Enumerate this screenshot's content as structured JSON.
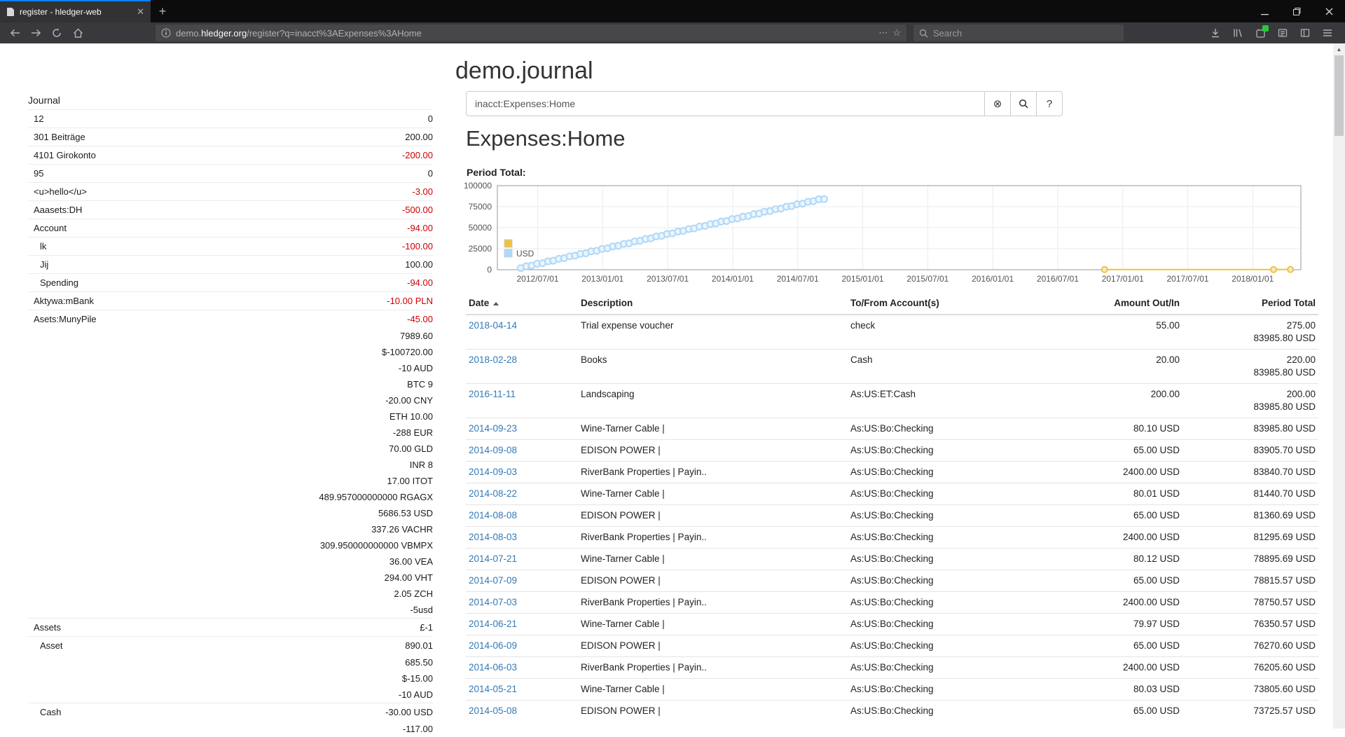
{
  "browser": {
    "tab_title": "register - hledger-web",
    "url": {
      "pre": "demo.",
      "domain": "hledger.org",
      "path": "/register?q=inacct%3AExpenses%3AHome"
    },
    "search_placeholder": "Search"
  },
  "colors": {
    "link": "#337ab7",
    "negative": "#cc0000",
    "tab_accent": "#0a84ff",
    "series_yellow": "#EDC240",
    "series_blue": "#AFD8F8"
  },
  "page": {
    "title": "demo.journal",
    "sidebar": {
      "header": "Journal",
      "rows": [
        {
          "name": "12",
          "indent": 1,
          "amount": "0",
          "red": false
        },
        {
          "name": "301 Beiträge",
          "indent": 1,
          "amount": "200.00",
          "red": false
        },
        {
          "name": "4101 Girokonto",
          "indent": 1,
          "amount": "-200.00",
          "red": true
        },
        {
          "name": "95",
          "indent": 1,
          "amount": "0",
          "red": false
        },
        {
          "name": "<u>hello</u>",
          "indent": 1,
          "amount": "-3.00",
          "red": true
        },
        {
          "name": "Aaasets:DH",
          "indent": 1,
          "amount": "-500.00",
          "red": true
        },
        {
          "name": "Account",
          "indent": 1,
          "amount": "-94.00",
          "red": true
        },
        {
          "name": "lk",
          "indent": 2,
          "amount": "-100.00",
          "red": true
        },
        {
          "name": "Jij",
          "indent": 2,
          "amount": "100.00",
          "red": false
        },
        {
          "name": "Spending",
          "indent": 2,
          "amount": "-94.00",
          "red": true
        },
        {
          "name": "Aktywa:mBank",
          "indent": 1,
          "amount": "-10.00 PLN",
          "red": true
        },
        {
          "name": "Asets:MunyPile",
          "indent": 1,
          "amount": "-45.00",
          "red": true
        },
        {
          "name": "",
          "indent": 0,
          "amount": "7989.60",
          "red": false
        },
        {
          "name": "",
          "indent": 0,
          "amount": "$-100720.00",
          "red": false
        },
        {
          "name": "",
          "indent": 0,
          "amount": "-10 AUD",
          "red": false
        },
        {
          "name": "",
          "indent": 0,
          "amount": "BTC 9",
          "red": false
        },
        {
          "name": "",
          "indent": 0,
          "amount": "-20.00 CNY",
          "red": false
        },
        {
          "name": "",
          "indent": 0,
          "amount": "ETH 10.00",
          "red": false
        },
        {
          "name": "",
          "indent": 0,
          "amount": "-288 EUR",
          "red": false
        },
        {
          "name": "",
          "indent": 0,
          "amount": "70.00 GLD",
          "red": false
        },
        {
          "name": "",
          "indent": 0,
          "amount": "INR 8",
          "red": false
        },
        {
          "name": "",
          "indent": 0,
          "amount": "17.00 ITOT",
          "red": false
        },
        {
          "name": "",
          "indent": 0,
          "amount": "489.957000000000 RGAGX",
          "red": false
        },
        {
          "name": "",
          "indent": 0,
          "amount": "5686.53 USD",
          "red": false
        },
        {
          "name": "",
          "indent": 0,
          "amount": "337.26 VACHR",
          "red": false
        },
        {
          "name": "",
          "indent": 0,
          "amount": "309.950000000000 VBMPX",
          "red": false
        },
        {
          "name": "",
          "indent": 0,
          "amount": "36.00 VEA",
          "red": false
        },
        {
          "name": "",
          "indent": 0,
          "amount": "294.00 VHT",
          "red": false
        },
        {
          "name": "",
          "indent": 0,
          "amount": "2.05 ZCH",
          "red": false
        },
        {
          "name": "",
          "indent": 0,
          "amount": "-5usd",
          "red": false
        },
        {
          "name": "Assets",
          "indent": 1,
          "amount": "£-1",
          "red": false
        },
        {
          "name": "Asset",
          "indent": 2,
          "amount": "890.01",
          "red": false
        },
        {
          "name": "",
          "indent": 0,
          "amount": "685.50",
          "red": false
        },
        {
          "name": "",
          "indent": 0,
          "amount": "$-15.00",
          "red": false
        },
        {
          "name": "",
          "indent": 0,
          "amount": "-10 AUD",
          "red": false
        },
        {
          "name": "Cash",
          "indent": 2,
          "amount": "-30.00 USD",
          "red": false
        },
        {
          "name": "",
          "indent": 0,
          "amount": "-117.00",
          "red": false
        }
      ]
    },
    "query": {
      "value": "inacct:Expenses:Home",
      "clear_icon": "⊗",
      "help_label": "?"
    },
    "account_heading": "Expenses:Home",
    "period_total_label": "Period Total:",
    "chart": {
      "type": "scatter",
      "ylim": [
        0,
        100000
      ],
      "xrange": [
        2012.19,
        2018.37
      ],
      "yticks": [
        {
          "v": 0,
          "label": "0"
        },
        {
          "v": 25000,
          "label": "25000"
        },
        {
          "v": 50000,
          "label": "50000"
        },
        {
          "v": 75000,
          "label": "75000"
        },
        {
          "v": 100000,
          "label": "100000"
        }
      ],
      "xticks": [
        {
          "t": 2012.5,
          "label": "2012/07/01"
        },
        {
          "t": 2013.0,
          "label": "2013/01/01"
        },
        {
          "t": 2013.5,
          "label": "2013/07/01"
        },
        {
          "t": 2014.0,
          "label": "2014/01/01"
        },
        {
          "t": 2014.5,
          "label": "2014/07/01"
        },
        {
          "t": 2015.0,
          "label": "2015/01/01"
        },
        {
          "t": 2015.5,
          "label": "2015/07/01"
        },
        {
          "t": 2016.0,
          "label": "2016/01/01"
        },
        {
          "t": 2016.5,
          "label": "2016/07/01"
        },
        {
          "t": 2017.0,
          "label": "2017/01/01"
        },
        {
          "t": 2017.5,
          "label": "2017/07/01"
        },
        {
          "t": 2018.0,
          "label": "2018/01/01"
        }
      ],
      "legend": [
        {
          "label": "",
          "color": "#EDC240"
        },
        {
          "label": "USD",
          "color": "#AFD8F8"
        }
      ],
      "series": [
        {
          "name": "",
          "color": "#EDC240",
          "fill": "#f8ecc8",
          "line": true,
          "r": 4,
          "points": [
            [
              2016.86,
              200
            ],
            [
              2018.16,
              220
            ],
            [
              2018.29,
              275
            ]
          ]
        },
        {
          "name": "USD",
          "color": "#AFD8F8",
          "fill": "#e4f1fb",
          "line": false,
          "r": 4.5,
          "points": [
            [
              2012.37,
              1900
            ],
            [
              2012.412,
              4150
            ],
            [
              2012.453,
              4850
            ],
            [
              2012.495,
              7100
            ],
            [
              2012.537,
              7800
            ],
            [
              2012.579,
              10050
            ],
            [
              2012.62,
              10750
            ],
            [
              2012.662,
              13000
            ],
            [
              2012.703,
              13700
            ],
            [
              2012.745,
              15950
            ],
            [
              2012.787,
              16650
            ],
            [
              2012.829,
              18900
            ],
            [
              2012.87,
              19600
            ],
            [
              2012.912,
              21850
            ],
            [
              2012.953,
              22550
            ],
            [
              2012.995,
              24800
            ],
            [
              2013.037,
              25500
            ],
            [
              2013.079,
              27750
            ],
            [
              2013.12,
              28450
            ],
            [
              2013.162,
              30700
            ],
            [
              2013.203,
              31400
            ],
            [
              2013.245,
              33650
            ],
            [
              2013.287,
              34350
            ],
            [
              2013.329,
              36600
            ],
            [
              2013.37,
              37300
            ],
            [
              2013.412,
              39550
            ],
            [
              2013.453,
              40250
            ],
            [
              2013.495,
              42500
            ],
            [
              2013.537,
              43200
            ],
            [
              2013.579,
              45450
            ],
            [
              2013.62,
              46150
            ],
            [
              2013.662,
              48400
            ],
            [
              2013.703,
              49100
            ],
            [
              2013.745,
              51350
            ],
            [
              2013.787,
              52050
            ],
            [
              2013.829,
              54300
            ],
            [
              2013.87,
              55000
            ],
            [
              2013.912,
              57250
            ],
            [
              2013.953,
              57950
            ],
            [
              2013.995,
              60200
            ],
            [
              2014.037,
              60900
            ],
            [
              2014.079,
              63150
            ],
            [
              2014.12,
              63850
            ],
            [
              2014.162,
              66100
            ],
            [
              2014.203,
              66800
            ],
            [
              2014.245,
              69050
            ],
            [
              2014.287,
              69750
            ],
            [
              2014.329,
              72000
            ],
            [
              2014.37,
              72700
            ],
            [
              2014.412,
              74950
            ],
            [
              2014.453,
              75650
            ],
            [
              2014.495,
              77900
            ],
            [
              2014.537,
              78600
            ],
            [
              2014.579,
              80850
            ],
            [
              2014.62,
              81550
            ],
            [
              2014.662,
              83800
            ],
            [
              2014.703,
              83985.8
            ]
          ]
        }
      ]
    },
    "register": {
      "headers": [
        "Date",
        "Description",
        "To/From Account(s)",
        "Amount Out/In",
        "Period Total"
      ],
      "rows": [
        {
          "date": "2018-04-14",
          "description": "Trial expense voucher",
          "account": "check",
          "amount": "55.00",
          "total": [
            "275.00",
            "83985.80 USD"
          ]
        },
        {
          "date": "2018-02-28",
          "description": "Books",
          "account": "Cash",
          "amount": "20.00",
          "total": [
            "220.00",
            "83985.80 USD"
          ]
        },
        {
          "date": "2016-11-11",
          "description": "Landscaping",
          "account": "As:US:ET:Cash",
          "amount": "200.00",
          "total": [
            "200.00",
            "83985.80 USD"
          ]
        },
        {
          "date": "2014-09-23",
          "description": "Wine-Tarner Cable |",
          "account": "As:US:Bo:Checking",
          "amount": "80.10 USD",
          "total": [
            "83985.80 USD"
          ]
        },
        {
          "date": "2014-09-08",
          "description": "EDISON POWER |",
          "account": "As:US:Bo:Checking",
          "amount": "65.00 USD",
          "total": [
            "83905.70 USD"
          ]
        },
        {
          "date": "2014-09-03",
          "description": "RiverBank Properties | Payin..",
          "account": "As:US:Bo:Checking",
          "amount": "2400.00 USD",
          "total": [
            "83840.70 USD"
          ]
        },
        {
          "date": "2014-08-22",
          "description": "Wine-Tarner Cable |",
          "account": "As:US:Bo:Checking",
          "amount": "80.01 USD",
          "total": [
            "81440.70 USD"
          ]
        },
        {
          "date": "2014-08-08",
          "description": "EDISON POWER |",
          "account": "As:US:Bo:Checking",
          "amount": "65.00 USD",
          "total": [
            "81360.69 USD"
          ]
        },
        {
          "date": "2014-08-03",
          "description": "RiverBank Properties | Payin..",
          "account": "As:US:Bo:Checking",
          "amount": "2400.00 USD",
          "total": [
            "81295.69 USD"
          ]
        },
        {
          "date": "2014-07-21",
          "description": "Wine-Tarner Cable |",
          "account": "As:US:Bo:Checking",
          "amount": "80.12 USD",
          "total": [
            "78895.69 USD"
          ]
        },
        {
          "date": "2014-07-09",
          "description": "EDISON POWER |",
          "account": "As:US:Bo:Checking",
          "amount": "65.00 USD",
          "total": [
            "78815.57 USD"
          ]
        },
        {
          "date": "2014-07-03",
          "description": "RiverBank Properties | Payin..",
          "account": "As:US:Bo:Checking",
          "amount": "2400.00 USD",
          "total": [
            "78750.57 USD"
          ]
        },
        {
          "date": "2014-06-21",
          "description": "Wine-Tarner Cable |",
          "account": "As:US:Bo:Checking",
          "amount": "79.97 USD",
          "total": [
            "76350.57 USD"
          ]
        },
        {
          "date": "2014-06-09",
          "description": "EDISON POWER |",
          "account": "As:US:Bo:Checking",
          "amount": "65.00 USD",
          "total": [
            "76270.60 USD"
          ]
        },
        {
          "date": "2014-06-03",
          "description": "RiverBank Properties | Payin..",
          "account": "As:US:Bo:Checking",
          "amount": "2400.00 USD",
          "total": [
            "76205.60 USD"
          ]
        },
        {
          "date": "2014-05-21",
          "description": "Wine-Tarner Cable |",
          "account": "As:US:Bo:Checking",
          "amount": "80.03 USD",
          "total": [
            "73805.60 USD"
          ]
        },
        {
          "date": "2014-05-08",
          "description": "EDISON POWER |",
          "account": "As:US:Bo:Checking",
          "amount": "65.00 USD",
          "total": [
            "73725.57 USD"
          ]
        }
      ]
    }
  }
}
